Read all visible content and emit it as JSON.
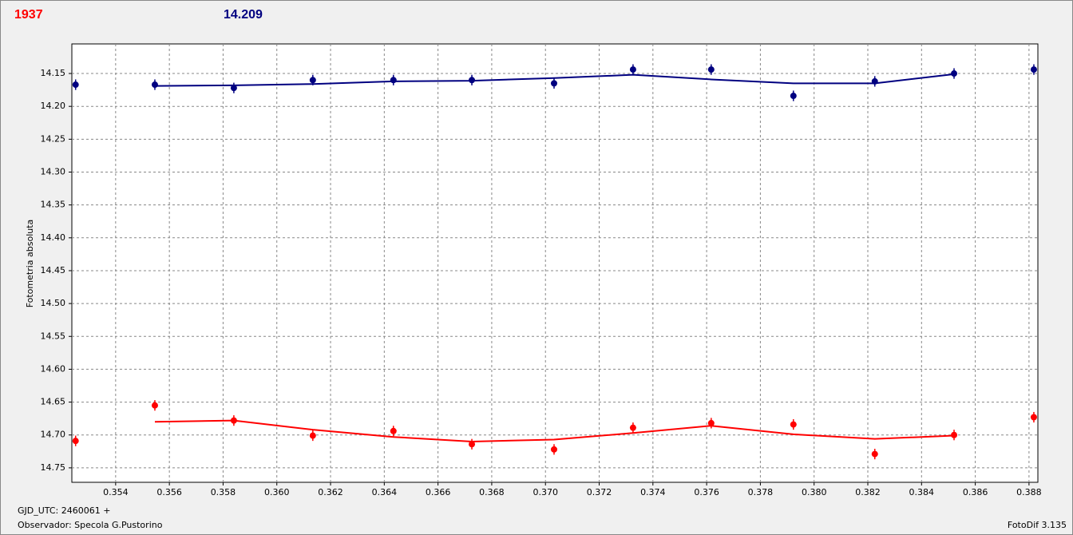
{
  "chart_data": {
    "type": "scatter",
    "header": [
      {
        "text": "1937",
        "color": "#ff0000"
      },
      {
        "text": "14.209",
        "color": "#000080"
      }
    ],
    "ylabel": "Fotometria absoluta",
    "xlabel": "GJD_UTC: 2460061 +",
    "footer_left": "Observador: Specola G.Pustorino",
    "footer_right": "FotoDif 3.135",
    "x": [
      0.35251,
      0.35546,
      0.3584,
      0.36134,
      0.36434,
      0.36726,
      0.37032,
      0.37326,
      0.37617,
      0.37923,
      0.38226,
      0.38521,
      0.38818
    ],
    "series": [
      {
        "color": "#000080",
        "error": 0.008,
        "values": [
          14.167,
          14.167,
          14.172,
          14.16,
          14.16,
          14.16,
          14.165,
          14.144,
          14.144,
          14.184,
          14.162,
          14.15,
          14.144
        ],
        "fit": [
          null,
          14.169,
          14.168,
          14.166,
          14.162,
          14.161,
          14.157,
          14.152,
          14.159,
          14.165,
          14.165,
          14.151,
          null
        ]
      },
      {
        "color": "#ff0000",
        "error": 0.008,
        "values": [
          14.709,
          14.655,
          14.678,
          14.701,
          14.694,
          14.714,
          14.722,
          14.689,
          14.682,
          14.684,
          14.729,
          14.7,
          14.673
        ],
        "fit": [
          null,
          14.68,
          14.678,
          14.692,
          14.703,
          14.71,
          14.707,
          14.697,
          14.686,
          14.699,
          14.706,
          14.701,
          null
        ]
      }
    ],
    "xlim": [
      0.35237,
      0.38833
    ],
    "xticks": [
      0.354,
      0.356,
      0.358,
      {
        "value": 0.36,
        "label": "0.360"
      },
      0.362,
      0.364,
      0.366,
      0.368,
      {
        "value": 0.37,
        "label": "0.370"
      },
      0.372,
      0.374,
      0.376,
      0.378,
      {
        "value": 0.38,
        "label": "0.380"
      },
      0.382,
      0.384,
      0.386,
      0.388
    ],
    "ylim": [
      14.105,
      14.772
    ],
    "y_inverted": true,
    "yticks": [
      14.15,
      {
        "value": 14.2,
        "label": "14.20"
      },
      14.25,
      {
        "value": 14.3,
        "label": "14.30"
      },
      14.35,
      {
        "value": 14.4,
        "label": "14.40"
      },
      14.45,
      {
        "value": 14.5,
        "label": "14.50"
      },
      14.55,
      {
        "value": 14.6,
        "label": "14.60"
      },
      14.65,
      {
        "value": 14.7,
        "label": "14.70"
      },
      14.75
    ],
    "grid": true
  }
}
